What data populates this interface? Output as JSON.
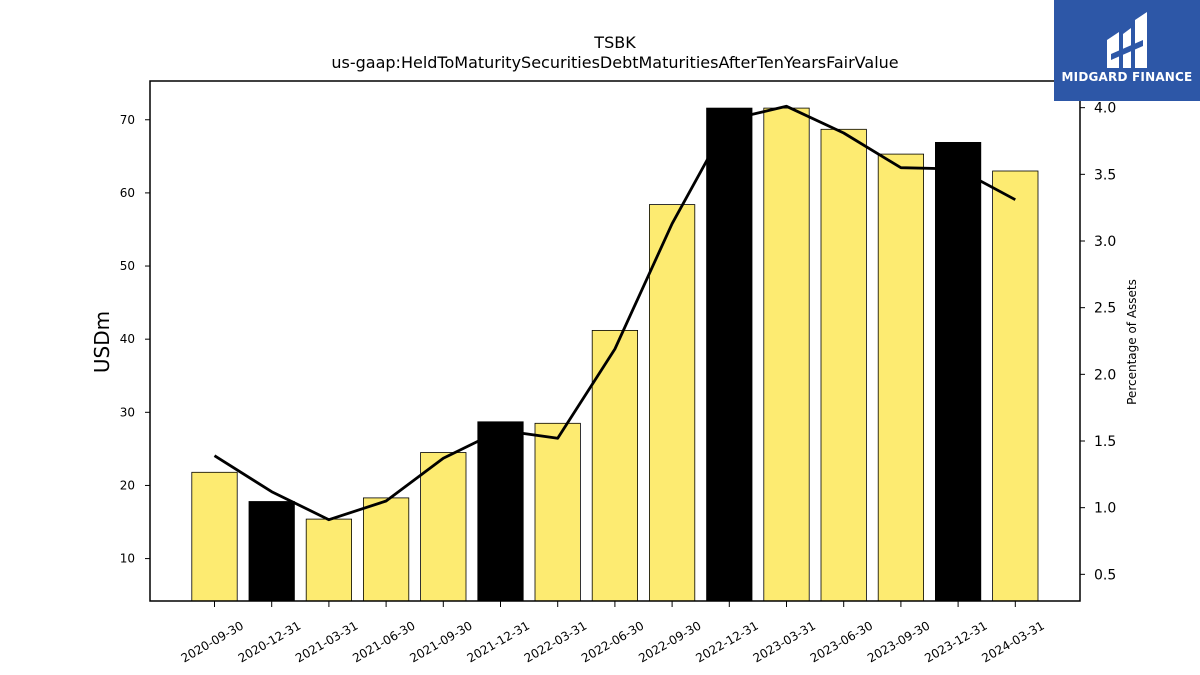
{
  "chart_data": {
    "type": "bar+line",
    "title": "TSBK",
    "subtitle": "us-gaap:HeldToMaturitySecuritiesDebtMaturitiesAfterTenYearsFairValue",
    "ylabel_left": "USDm",
    "ylabel_right": "Percentage of Assets",
    "categories": [
      "2020-09-30",
      "2020-12-31",
      "2021-03-31",
      "2021-06-30",
      "2021-09-30",
      "2021-12-31",
      "2022-03-31",
      "2022-06-30",
      "2022-09-30",
      "2022-12-31",
      "2023-03-31",
      "2023-06-30",
      "2023-09-30",
      "2023-12-31",
      "2024-03-31"
    ],
    "bars": {
      "name": "USDm",
      "values": [
        21.8,
        17.8,
        15.4,
        18.3,
        24.5,
        28.7,
        28.5,
        41.2,
        58.4,
        71.6,
        71.6,
        68.7,
        65.3,
        66.9,
        63.0
      ],
      "highlight": [
        false,
        true,
        false,
        false,
        false,
        true,
        false,
        false,
        false,
        true,
        false,
        false,
        false,
        true,
        false
      ]
    },
    "line": {
      "name": "Percentage of Assets",
      "values": [
        1.39,
        1.12,
        0.91,
        1.05,
        1.37,
        1.58,
        1.52,
        2.19,
        3.13,
        3.91,
        4.01,
        3.81,
        3.55,
        3.54,
        3.31
      ]
    },
    "ylim_left": [
      4.2,
      75.3
    ],
    "ylim_right": [
      0.3,
      4.2
    ],
    "yticks_left": [
      10,
      20,
      30,
      40,
      50,
      60,
      70
    ],
    "yticks_right": [
      "0.5",
      "1.0",
      "1.5",
      "2.0",
      "2.5",
      "3.0",
      "3.5",
      "4.0"
    ],
    "grid": false,
    "colors": {
      "bar": "#fdeb71",
      "bar_highlight": "#000000",
      "line": "#000000"
    }
  },
  "logo": {
    "text": "MIDGARD FINANCE"
  }
}
